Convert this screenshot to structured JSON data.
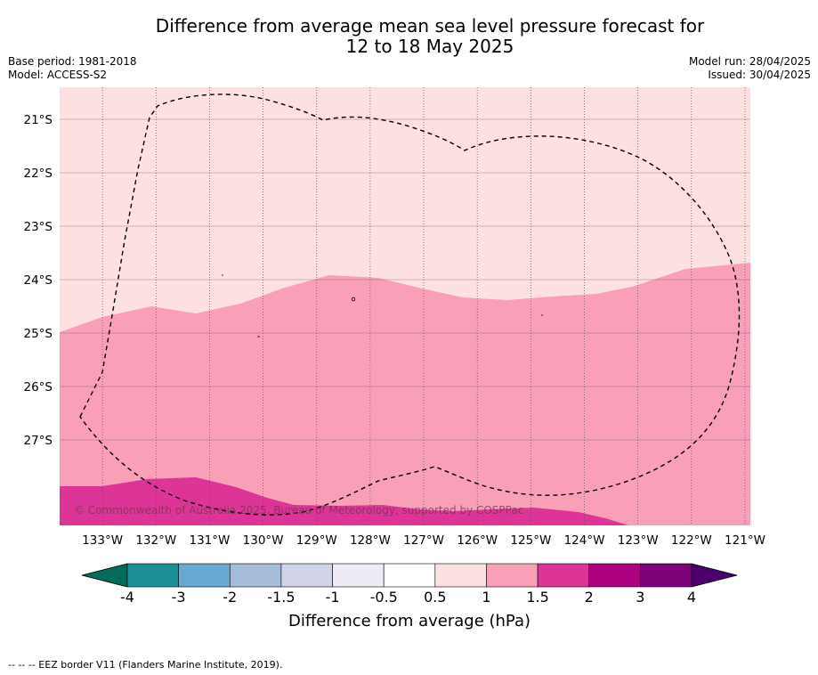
{
  "title_line1": "Difference from average mean sea level pressure forecast for",
  "title_line2": "12 to 18 May 2025",
  "base_period": "Base period: 1981-2018",
  "model": "Model: ACCESS-S2",
  "model_run": "Model run: 28/04/2025",
  "issued": "Issued: 30/04/2025",
  "copyright": "© Commonwealth of Australia 2025, Bureau of Meteorology, supported by COSPPac",
  "footnote": "--  --  -- EEZ border V11 (Flanders Marine Institute, 2019).",
  "map": {
    "lon_range": [
      -133.8,
      -120.9
    ],
    "lat_range": [
      -28.6,
      -20.4
    ],
    "lon_ticks": [
      {
        "value": -133,
        "label": "133°W"
      },
      {
        "value": -132,
        "label": "132°W"
      },
      {
        "value": -131,
        "label": "131°W"
      },
      {
        "value": -130,
        "label": "130°W"
      },
      {
        "value": -129,
        "label": "129°W"
      },
      {
        "value": -128,
        "label": "128°W"
      },
      {
        "value": -127,
        "label": "127°W"
      },
      {
        "value": -126,
        "label": "126°W"
      },
      {
        "value": -125,
        "label": "125°W"
      },
      {
        "value": -124,
        "label": "124°W"
      },
      {
        "value": -123,
        "label": "123°W"
      },
      {
        "value": -122,
        "label": "122°W"
      },
      {
        "value": -121,
        "label": "121°W"
      }
    ],
    "lat_ticks": [
      {
        "value": -21,
        "label": "21°S"
      },
      {
        "value": -22,
        "label": "22°S"
      },
      {
        "value": -23,
        "label": "23°S"
      },
      {
        "value": -24,
        "label": "24°S"
      },
      {
        "value": -25,
        "label": "25°S"
      },
      {
        "value": -26,
        "label": "26°S"
      },
      {
        "value": -27,
        "label": "27°S"
      }
    ],
    "band_colors": {
      "0.5_1": "#fde0e0",
      "1_1.5": "#f99fb7",
      "1.5_2": "#dc3597"
    }
  },
  "colorbar": {
    "title": "Difference from average (hPa)",
    "tick_labels": [
      "-4",
      "-3",
      "-2",
      "-1.5",
      "-1",
      "-0.5",
      "0.5",
      "1",
      "1.5",
      "2",
      "3",
      "4"
    ],
    "colors": [
      "#1a9096",
      "#66aad3",
      "#a7bcdb",
      "#d1d3e9",
      "#efebf4",
      "#ffffff",
      "#fde0e0",
      "#f99fb7",
      "#dc3597",
      "#ae017e",
      "#7a0177"
    ],
    "under_color": "#016c59",
    "over_color": "#49006a"
  }
}
